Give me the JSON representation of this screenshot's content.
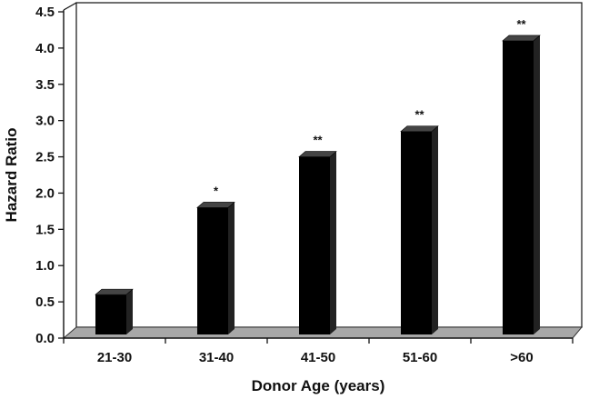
{
  "chart_data": {
    "type": "bar",
    "title": "",
    "xlabel": "Donor Age (years)",
    "ylabel": "Hazard Ratio",
    "categories": [
      "21-30",
      "31-40",
      "41-50",
      "51-60",
      ">60"
    ],
    "values": [
      0.6,
      1.8,
      2.5,
      2.85,
      4.1
    ],
    "significance": [
      "",
      "*",
      "**",
      "**",
      "**"
    ],
    "ylim": [
      0,
      4.5
    ],
    "yticks": [
      "0.0",
      "0.5",
      "1.0",
      "1.5",
      "2.0",
      "2.5",
      "3.0",
      "3.5",
      "4.0",
      "4.5"
    ],
    "grid": false,
    "legend": "none",
    "bar_color": "#000000",
    "floor_color": "#a8a8a8"
  }
}
